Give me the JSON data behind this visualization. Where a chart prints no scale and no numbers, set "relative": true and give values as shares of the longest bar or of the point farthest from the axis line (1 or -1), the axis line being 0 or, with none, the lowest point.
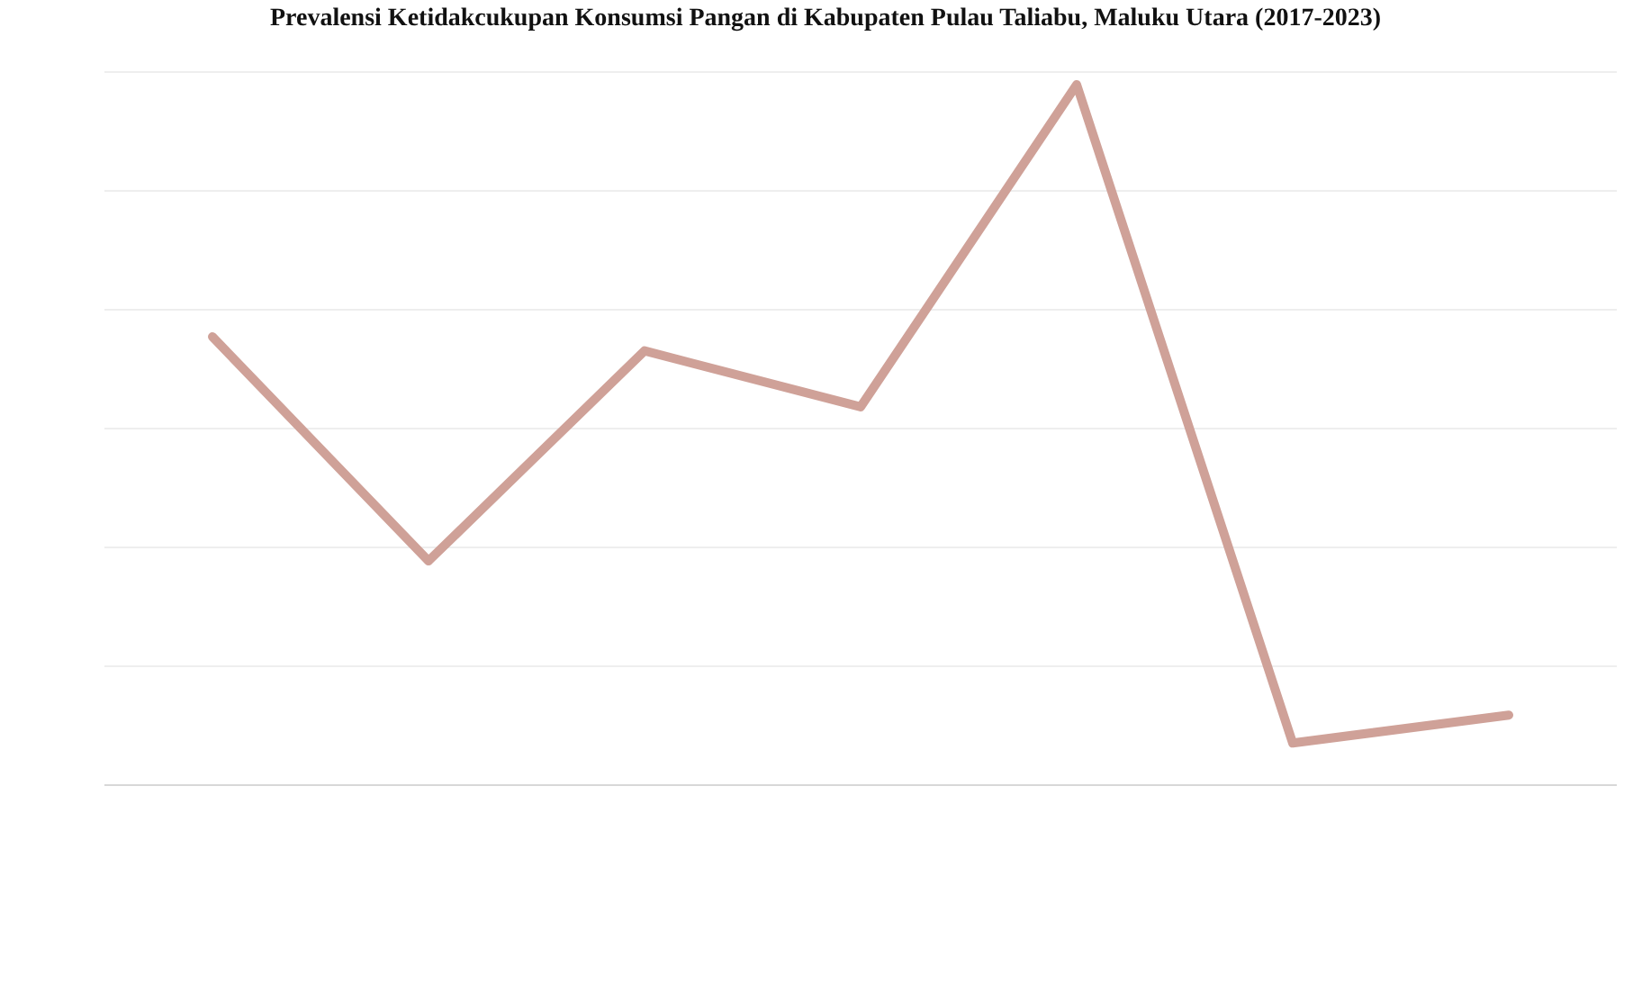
{
  "chart_data": {
    "type": "line",
    "title": "Prevalensi Ketidakcukupan Konsumsi Pangan di Kabupaten Pulau Taliabu, Maluku Utara (2017-2023)",
    "categories": [
      null,
      null,
      null,
      null,
      null,
      null,
      null
    ],
    "values": [
      0.64,
      0.32,
      0.62,
      0.54,
      1,
      0.06,
      0.1
    ],
    "color": "#cfa198",
    "relative": true,
    "grid": "y",
    "line_style": "solid"
  }
}
